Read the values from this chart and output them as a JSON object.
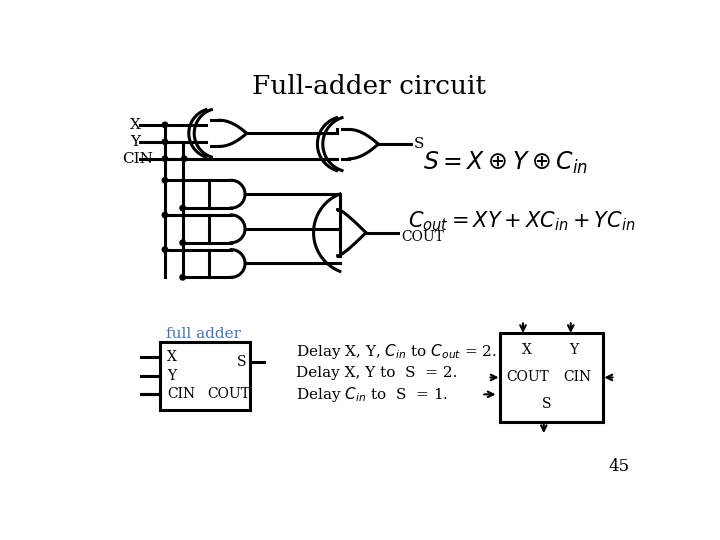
{
  "title": "Full-adder circuit",
  "background_color": "#ffffff",
  "text_color": "#000000",
  "blue_color": "#4472C4",
  "page_number": "45",
  "label_X": "X",
  "label_Y": "Y",
  "label_CIN": "CIN",
  "label_S": "S",
  "label_COUT": "COUT",
  "label_full_adder": "full adder",
  "delay_line1": "Delay X, Y, $C_{in}$ to $C_{out}$ = 2.",
  "delay_line2": "Delay X, Y to  S  = 2.",
  "delay_line3": "Delay $C_{in}$ to  S  = 1."
}
